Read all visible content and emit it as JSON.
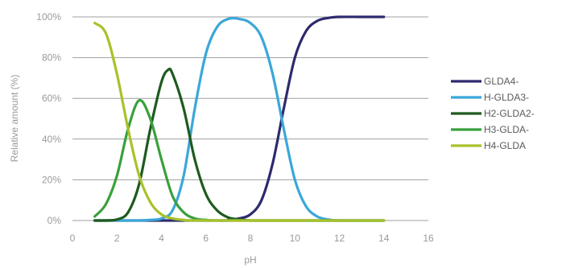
{
  "chart_data": {
    "type": "line",
    "title": "",
    "xlabel": "pH",
    "ylabel": "Relative amount (%)",
    "xlim": [
      0,
      16
    ],
    "ylim": [
      0,
      100
    ],
    "xticks": [
      0,
      2,
      4,
      6,
      8,
      10,
      12,
      14,
      16
    ],
    "yticks": [
      0,
      20,
      40,
      60,
      80,
      100
    ],
    "xtick_labels": [
      "0",
      "2",
      "4",
      "6",
      "8",
      "10",
      "12",
      "14",
      "16"
    ],
    "ytick_labels": [
      "0%",
      "20%",
      "40%",
      "60%",
      "80%",
      "100%"
    ],
    "grid": "horizontal",
    "legend_position": "right",
    "series": [
      {
        "name": "GLDA4-",
        "color": "#2e2a6e",
        "x": [
          1,
          6.5,
          7,
          7.5,
          8,
          8.5,
          9,
          9.5,
          10,
          10.5,
          11,
          11.5,
          12,
          13,
          14
        ],
        "y": [
          0,
          0,
          0.3,
          1,
          3,
          10,
          28,
          55,
          80,
          93,
          98,
          99.5,
          100,
          100,
          100
        ]
      },
      {
        "name": "H-GLDA3-",
        "color": "#3aa7d9",
        "x": [
          1,
          2,
          3,
          3.5,
          4,
          4.5,
          5,
          5.5,
          6,
          6.5,
          7,
          7.5,
          8,
          8.5,
          9,
          9.5,
          10,
          10.5,
          11,
          11.5,
          12,
          14
        ],
        "y": [
          0,
          0,
          0,
          0.3,
          1,
          5,
          22,
          55,
          82,
          95,
          99,
          99,
          97,
          90,
          72,
          45,
          20,
          7,
          2,
          0.5,
          0,
          0
        ]
      },
      {
        "name": "H2-GLDA2-",
        "color": "#1f5a1f",
        "x": [
          1,
          1.5,
          2,
          2.5,
          3,
          3.5,
          4,
          4.3,
          4.5,
          5,
          5.5,
          6,
          6.5,
          7,
          7.5,
          8,
          9,
          14
        ],
        "y": [
          0,
          0,
          0.5,
          4,
          18,
          45,
          68,
          74,
          72,
          55,
          30,
          13,
          5,
          1.5,
          0.5,
          0,
          0,
          0
        ]
      },
      {
        "name": "H3-GLDA-",
        "color": "#39a03c",
        "x": [
          1,
          1.5,
          2,
          2.5,
          3,
          3.5,
          4,
          4.5,
          5,
          5.5,
          6,
          7,
          14
        ],
        "y": [
          2,
          8,
          22,
          45,
          59,
          50,
          30,
          12,
          4,
          1,
          0.3,
          0,
          0
        ]
      },
      {
        "name": "H4-GLDA",
        "color": "#a8c22a",
        "x": [
          1,
          1.5,
          2,
          2.5,
          3,
          3.5,
          4,
          4.5,
          5,
          6,
          14
        ],
        "y": [
          97,
          92,
          72,
          45,
          22,
          9,
          3,
          1,
          0.3,
          0,
          0
        ]
      }
    ]
  },
  "colors": {
    "grid": "#9f9f9f",
    "tick_text": "#9a9a9a",
    "legend_text": "#5a5a5a"
  }
}
